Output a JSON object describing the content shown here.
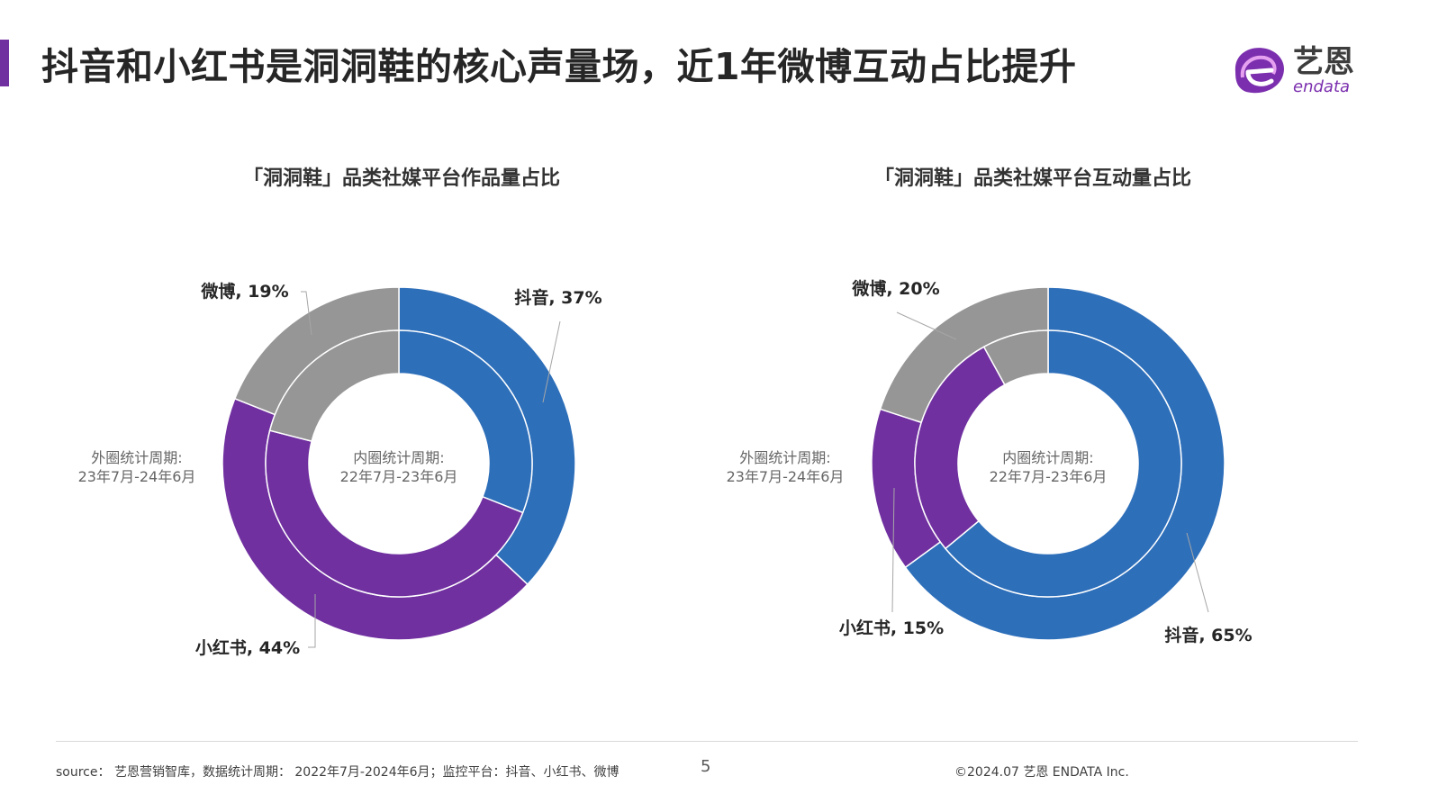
{
  "header": {
    "title": "抖音和小红书是洞洞鞋的核心声量场，近1年微博互动占比提升",
    "logo_cn": "艺恩",
    "logo_en": "endata"
  },
  "colors": {
    "accent": "#7030a0",
    "douyin": "#2e6fba",
    "xiaohongshu": "#7030a0",
    "weibo": "#969696"
  },
  "chart_data": [
    {
      "type": "donut",
      "title": "「洞洞鞋」品类社媒平台作品量占比",
      "inner_label": [
        "内圈统计周期:",
        "22年7月-23年6月"
      ],
      "outer_label": [
        "外圈统计周期:",
        "23年7月-24年6月"
      ],
      "outer_ring": {
        "series": [
          {
            "name": "抖音",
            "value": 37,
            "label": "抖音, 37%"
          },
          {
            "name": "小红书",
            "value": 44,
            "label": "小红书, 44%"
          },
          {
            "name": "微博",
            "value": 19,
            "label": "微博, 19%"
          }
        ]
      },
      "inner_ring": {
        "series": [
          {
            "name": "抖音",
            "value": 31
          },
          {
            "name": "小红书",
            "value": 48
          },
          {
            "name": "微博",
            "value": 21
          }
        ]
      }
    },
    {
      "type": "donut",
      "title": "「洞洞鞋」品类社媒平台互动量占比",
      "inner_label": [
        "内圈统计周期:",
        "22年7月-23年6月"
      ],
      "outer_label": [
        "外圈统计周期:",
        "23年7月-24年6月"
      ],
      "outer_ring": {
        "series": [
          {
            "name": "抖音",
            "value": 65,
            "label": "抖音, 65%"
          },
          {
            "name": "小红书",
            "value": 15,
            "label": "小红书, 15%"
          },
          {
            "name": "微博",
            "value": 20,
            "label": "微博, 20%"
          }
        ]
      },
      "inner_ring": {
        "series": [
          {
            "name": "抖音",
            "value": 64
          },
          {
            "name": "小红书",
            "value": 28
          },
          {
            "name": "微博",
            "value": 8
          }
        ]
      }
    }
  ],
  "footer": {
    "source": "source： 艺恩营销智库，数据统计周期： 2022年7月-2024年6月；监控平台：抖音、小红书、微博",
    "page_number": "5",
    "copyright": "©2024.07 艺恩 ENDATA Inc."
  }
}
